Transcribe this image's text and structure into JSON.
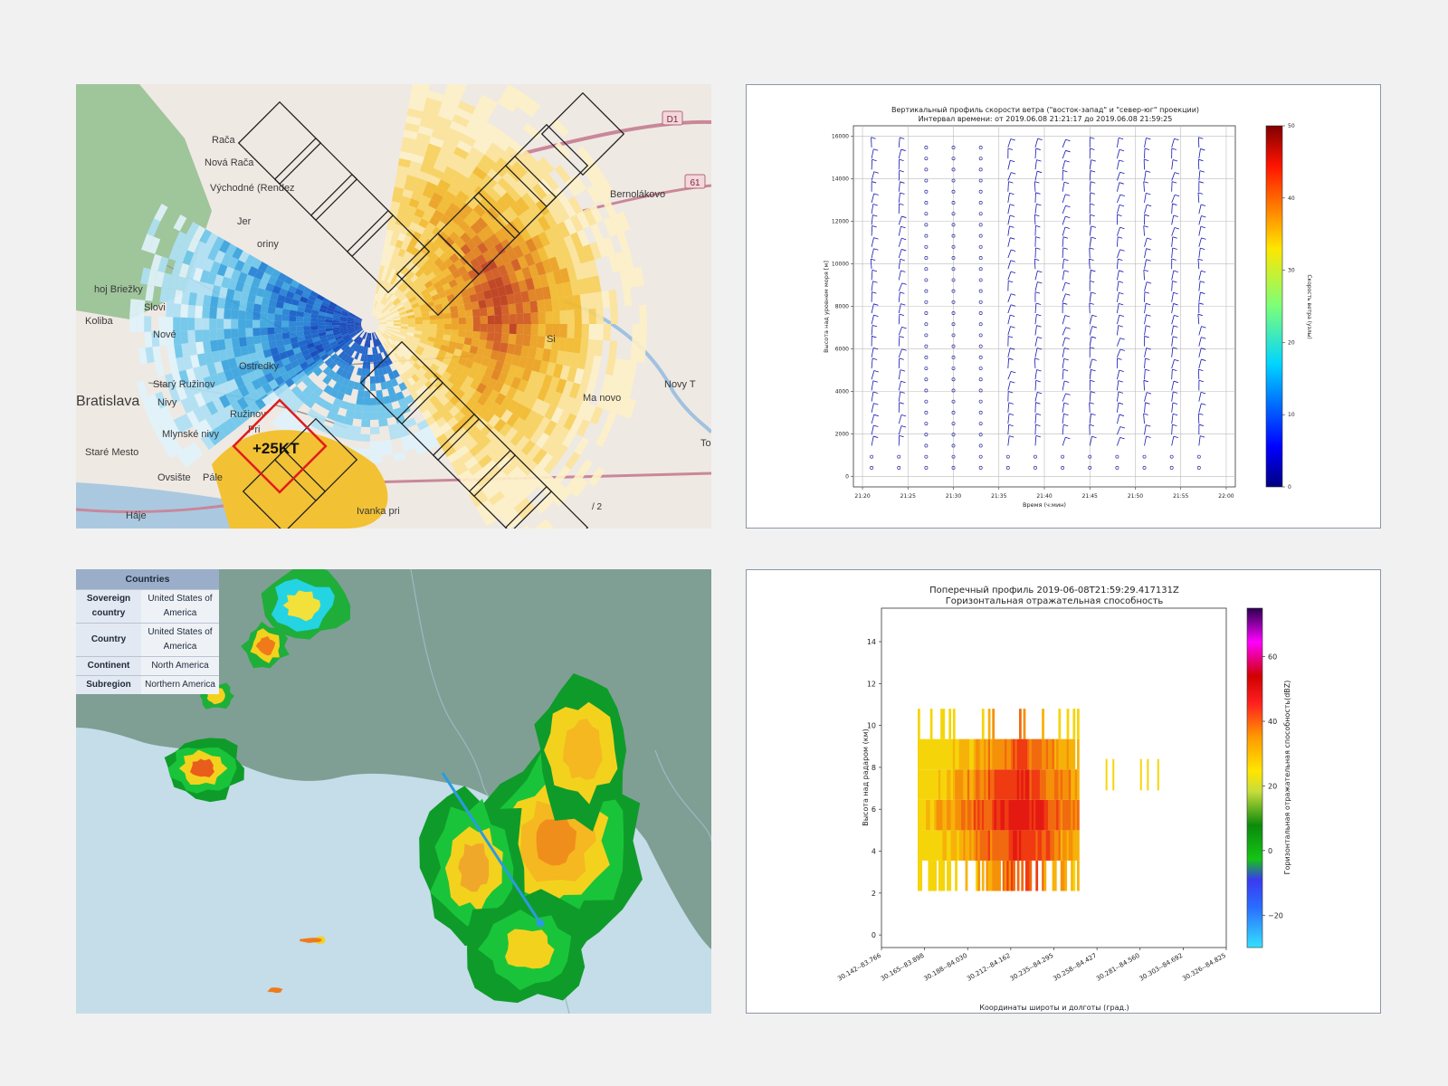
{
  "radar_map": {
    "places": [
      "Rača",
      "Nová Rača",
      "Východné (Rendez",
      "Jer",
      "oriny",
      "hoj Briežky",
      "Slovi",
      "Koliba",
      "Nové",
      "Ostredky",
      "Starý Ružinov",
      "Bratislava",
      "Nivy",
      "Ružinov",
      "Mlynské nivy",
      "Pri",
      "Staré Mesto",
      "Ovsište",
      "Pále",
      "Háje",
      "Ivanka pri",
      "Bernolákovo",
      "Novy T",
      "Ma novo",
      "Tom",
      "Si"
    ],
    "road_badges": [
      "D1",
      "61"
    ],
    "bottom_badge": "/ 2",
    "storm_label": "+25KT",
    "colors": {
      "storm_box": "#e21b1b",
      "grid": "#222222"
    }
  },
  "wind_profile": {
    "chart_data": {
      "type": "barbs",
      "title": "Вертикальный профиль скорости ветра (\"восток-запад\" и \"север-юг\" проекции)",
      "subtitle": "Интервал времени: от 2019.06.08 21:21:17 до 2019.06.08 21:59:25",
      "xlabel": "Время (ч:мин)",
      "ylabel": "Высота над уровнем моря [м]",
      "x_ticks": [
        "21:20",
        "21:25",
        "21:30",
        "21:35",
        "21:40",
        "21:45",
        "21:50",
        "21:55",
        "22:00"
      ],
      "y_ticks": [
        0,
        2000,
        4000,
        6000,
        8000,
        10000,
        12000,
        14000,
        16000
      ],
      "ylim": [
        -500,
        16500
      ],
      "colorbar_label": "Скорость ветра (узлы)",
      "colorbar_ticks": [
        0,
        10,
        20,
        30,
        40,
        50
      ],
      "grid": true,
      "profile_times": [
        "21:21",
        "21:24",
        "21:27",
        "21:30",
        "21:33",
        "21:36",
        "21:39",
        "21:42",
        "21:45",
        "21:48",
        "21:51",
        "21:54",
        "21:57"
      ],
      "calm_profiles": [
        "21:27",
        "21:30",
        "21:33"
      ]
    }
  },
  "countries_map": {
    "table": {
      "header": "Countries",
      "rows": [
        {
          "key": "Sovereign country",
          "value": "United States of America"
        },
        {
          "key": "Country",
          "value": "United States of America"
        },
        {
          "key": "Continent",
          "value": "North America"
        },
        {
          "key": "Subregion",
          "value": "Northern America"
        }
      ]
    },
    "colors": {
      "section_line": "#2b9be0",
      "sea": "#c4dde8",
      "land": "#7f9f94"
    }
  },
  "cross_section": {
    "chart_data": {
      "type": "heatmap",
      "title": "Поперечный профиль 2019-06-08T21:59:29.417131Z",
      "subtitle": "Горизонтальная отражательная способность",
      "xlabel": "Координаты широты и долготы (град.)",
      "ylabel": "Высота над радаром (км)",
      "x_ticks": [
        "30.142--83.766",
        "30.165--83.898",
        "30.188--84.030",
        "30.212--84.162",
        "30.235--84.295",
        "30.258--84.427",
        "30.281--84.560",
        "30.303--84.692",
        "30.326--84.825"
      ],
      "y_ticks": [
        0,
        2,
        4,
        6,
        8,
        10,
        12,
        14
      ],
      "ylim": [
        -0.6,
        15.6
      ],
      "colorbar_label": "Горизонтальная отражательная способность(dBZ)",
      "colorbar_ticks": [
        -20,
        0,
        20,
        40,
        60
      ],
      "colorbar_range": [
        -30,
        75
      ]
    }
  }
}
